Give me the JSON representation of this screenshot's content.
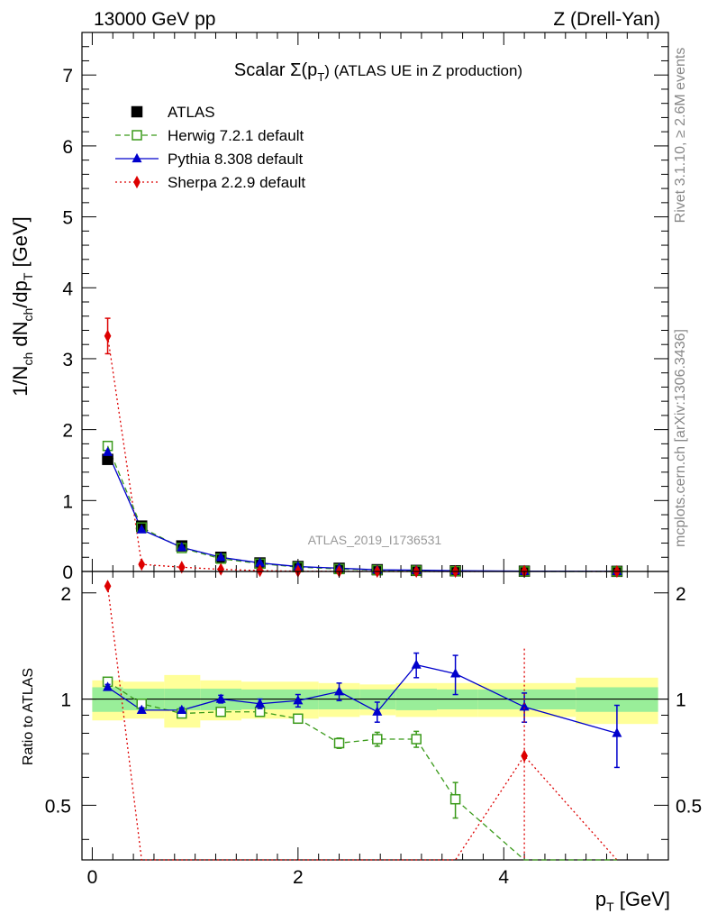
{
  "header": {
    "left": "13000 GeV pp",
    "right": "Z (Drell-Yan)"
  },
  "side_labels": {
    "rivet": "Rivet 3.1.10, ≥ 2.6M events",
    "mcplots": "mcplots.cern.ch [arXiv:1306.3436]"
  },
  "chart_data": {
    "type": "line",
    "title_main": "Scalar Σ(p",
    "title_sub": "T",
    "title_rest": ") (ATLAS UE in Z production)",
    "analysis_tag": "ATLAS_2019_I1736531",
    "xlabel": "p",
    "xlabel_sub": "T",
    "xlabel_unit": " [GeV]",
    "ylabel_parts": {
      "a": "1/N",
      "b": "ch",
      "c": " dN",
      "d": "ch",
      "e": "/dp",
      "f": "T",
      "g": " [GeV]"
    },
    "ratio_ylabel": "Ratio to ATLAS",
    "xlim": [
      -0.1,
      5.6
    ],
    "main": {
      "ylim": [
        0,
        7.6
      ],
      "yticks": [
        "0",
        "1",
        "2",
        "3",
        "4",
        "5",
        "6",
        "7"
      ]
    },
    "ratio": {
      "ylim": [
        0.35,
        2.3
      ],
      "yticks": [
        "0.5",
        "1",
        "2"
      ]
    },
    "x_tick_labels": [
      "0",
      "2",
      "4"
    ],
    "legend": [
      {
        "name": "ATLAS",
        "color": "#000000",
        "marker": "square"
      },
      {
        "name": "Herwig 7.2.1 default",
        "color": "#3a9a1a",
        "marker": "open-square"
      },
      {
        "name": "Pythia 8.308 default",
        "color": "#0000cc",
        "marker": "triangle"
      },
      {
        "name": "Sherpa 2.2.9 default",
        "color": "#dd0000",
        "marker": "diamond"
      }
    ],
    "x": [
      0.15,
      0.48,
      0.87,
      1.25,
      1.63,
      2.0,
      2.4,
      2.77,
      3.15,
      3.53,
      4.2,
      5.1
    ],
    "bins": [
      [
        -0.0,
        0.3
      ],
      [
        0.3,
        0.7
      ],
      [
        0.7,
        1.05
      ],
      [
        1.05,
        1.45
      ],
      [
        1.45,
        1.8
      ],
      [
        1.8,
        2.2
      ],
      [
        2.2,
        2.6
      ],
      [
        2.6,
        2.95
      ],
      [
        2.95,
        3.35
      ],
      [
        3.35,
        3.75
      ],
      [
        3.75,
        4.7
      ],
      [
        4.7,
        5.5
      ]
    ],
    "atlas": [
      1.58,
      0.64,
      0.36,
      0.2,
      0.12,
      0.07,
      0.045,
      0.025,
      0.015,
      0.009,
      0.004,
      0.002
    ],
    "herwig": [
      1.77,
      0.62,
      0.33,
      0.18,
      0.11,
      0.062,
      0.034,
      0.019,
      0.012,
      0.005,
      0.0013,
      0.0004
    ],
    "pythia": [
      1.68,
      0.59,
      0.34,
      0.2,
      0.12,
      0.069,
      0.046,
      0.023,
      0.019,
      0.011,
      0.0038,
      0.0016
    ],
    "sherpa": [
      3.32,
      0.1,
      0.06,
      0.03,
      0.012,
      0.004,
      0.002,
      0.001,
      0.0005,
      0.0002,
      0.0028,
      0.0004
    ],
    "sherpa_err_main": [
      0.25,
      0.02,
      0.01,
      0.006,
      0.003,
      0.001,
      0.0005,
      0.0003,
      0.0002,
      0.0001,
      0.001,
      0.0002
    ],
    "ratio_herwig": [
      1.12,
      0.97,
      0.91,
      0.92,
      0.92,
      0.88,
      0.75,
      0.77,
      0.77,
      0.52,
      0.33,
      0.2
    ],
    "ratio_herwig_err": [
      0.02,
      0.015,
      0.015,
      0.015,
      0.015,
      0.015,
      0.025,
      0.035,
      0.04,
      0.06,
      0.05,
      0.05
    ],
    "ratio_pythia": [
      1.08,
      0.93,
      0.93,
      1.0,
      0.97,
      0.99,
      1.05,
      0.92,
      1.25,
      1.18,
      0.95,
      0.8
    ],
    "ratio_pythia_err": [
      0.02,
      0.015,
      0.015,
      0.025,
      0.03,
      0.04,
      0.06,
      0.06,
      0.1,
      0.15,
      0.09,
      0.16
    ],
    "ratio_sherpa": [
      2.09,
      0.16,
      0.16,
      0.15,
      0.1,
      0.06,
      0.05,
      0.04,
      0.03,
      0.02,
      0.69,
      0.2
    ],
    "ratio_sherpa_err": [
      0.06,
      0.02,
      0.02,
      0.02,
      0.02,
      0.01,
      0.01,
      0.01,
      0.01,
      0.01,
      0.7,
      0.1
    ],
    "band_green": [
      0.08,
      0.07,
      0.07,
      0.07,
      0.065,
      0.065,
      0.065,
      0.065,
      0.07,
      0.065,
      0.065,
      0.08
    ],
    "band_yellow": [
      0.13,
      0.12,
      0.17,
      0.13,
      0.12,
      0.12,
      0.11,
      0.1,
      0.11,
      0.11,
      0.11,
      0.15
    ]
  }
}
